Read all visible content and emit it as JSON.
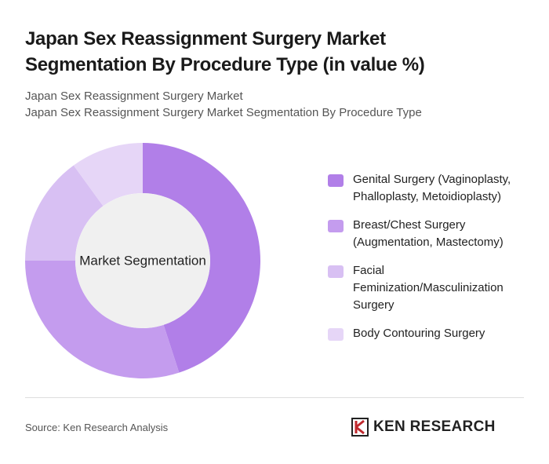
{
  "chart_data": {
    "type": "donut",
    "title": "Japan Sex Reassignment Surgery Market Segmentation By Procedure Type (in value %)",
    "subtitle_lines": [
      "Japan Sex Reassignment Surgery Market",
      "Japan Sex Reassignment Surgery Market Segmentation By Procedure Type"
    ],
    "center_label": "Market Segmentation",
    "categories": [
      "Genital Surgery (Vaginoplasty, Phalloplasty, Metoidioplasty)",
      "Breast/Chest Surgery (Augmentation, Mastectomy)",
      "Facial Feminization/Masculinization Surgery",
      "Body Contouring Surgery"
    ],
    "values": [
      45,
      30,
      15,
      10
    ],
    "colors": [
      "#b17fe8",
      "#c49cee",
      "#d8c0f3",
      "#e6d6f7"
    ],
    "source": "Source: Ken Research Analysis",
    "logo": "KEN RESEARCH"
  }
}
